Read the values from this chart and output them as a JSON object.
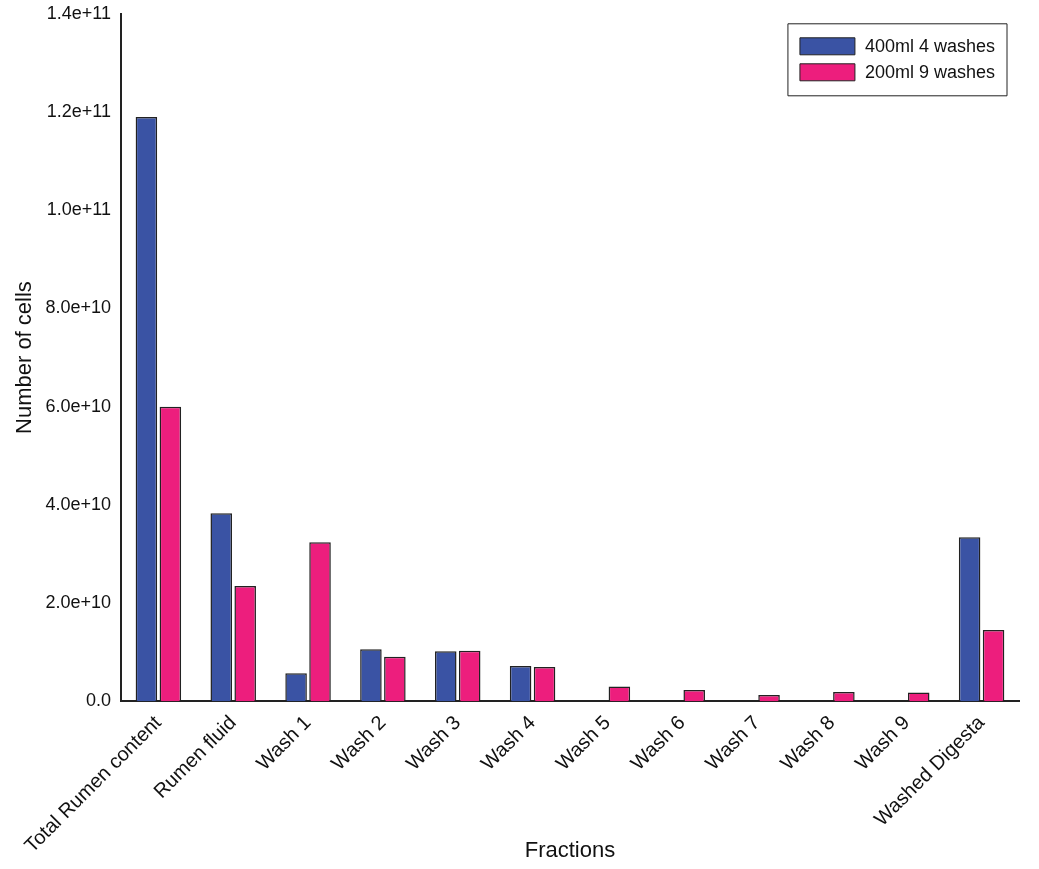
{
  "chart_data": {
    "type": "bar",
    "xlabel": "Fractions",
    "ylabel": "Number of cells",
    "categories": [
      "Total Rumen content",
      "Rumen fluid",
      "Wash 1",
      "Wash 2",
      "Wash 3",
      "Wash 4",
      "Wash 5",
      "Wash 6",
      "Wash 7",
      "Wash 8",
      "Wash 9",
      "Washed Digesta"
    ],
    "series": [
      {
        "name": "400ml 4 washes",
        "color": "#3a53a4",
        "values": [
          119000000000.0,
          38300000000.0,
          5700000000.0,
          10600000000.0,
          10200000000.0,
          7200000000.0,
          null,
          null,
          null,
          null,
          null,
          33400000000.0
        ]
      },
      {
        "name": "200ml 9 washes",
        "color": "#ed1e7d",
        "values": [
          60000000000.0,
          23500000000.0,
          32400000000.0,
          9100000000.0,
          10300000000.0,
          7000000000.0,
          3000000000.0,
          2300000000.0,
          1300000000.0,
          1900000000.0,
          1800000000.0,
          14500000000.0
        ]
      }
    ],
    "ylim": [
      0,
      140000000000.0
    ],
    "yticks": [
      {
        "value": 0,
        "label": "0.0"
      },
      {
        "value": 20000000000.0,
        "label": "2.0e+10"
      },
      {
        "value": 40000000000.0,
        "label": "4.0e+10"
      },
      {
        "value": 60000000000.0,
        "label": "6.0e+10"
      },
      {
        "value": 80000000000.0,
        "label": "8.0e+10"
      },
      {
        "value": 100000000000.0,
        "label": "1.0e+11"
      },
      {
        "value": 120000000000.0,
        "label": "1.2e+11"
      },
      {
        "value": 140000000000.0,
        "label": "1.4e+11"
      }
    ],
    "grid": false,
    "legend": "top right"
  }
}
